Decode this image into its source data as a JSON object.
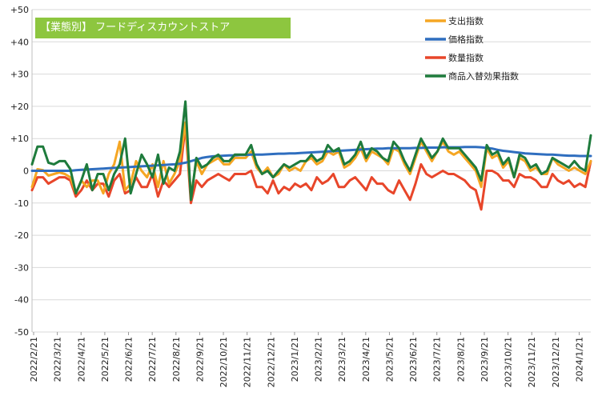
{
  "chart_data": {
    "type": "line",
    "title": "【業態別】 フードディスカウントストア",
    "ylim": [
      -50,
      50
    ],
    "y_ticks": [
      "+50",
      "+40",
      "+30",
      "+20",
      "+10",
      "0",
      "-10",
      "-20",
      "-30",
      "-40",
      "-50"
    ],
    "x_ticks": [
      "2022/2/21",
      "2022/3/21",
      "2022/4/21",
      "2022/5/21",
      "2022/6/21",
      "2022/7/21",
      "2022/8/21",
      "2022/9/21",
      "2022/10/21",
      "2022/11/21",
      "2022/12/21",
      "2023/1/21",
      "2023/2/21",
      "2023/3/21",
      "2023/4/21",
      "2023/5/21",
      "2023/6/21",
      "2023/7/21",
      "2023/8/21",
      "2023/9/21",
      "2023/10/21",
      "2023/11/21",
      "2023/12/21",
      "2024/1/21"
    ],
    "weeks_per_tick": 4.33,
    "grid": true,
    "legend_position": "top-right",
    "series": [
      {
        "name": "支出指数",
        "color": "#f5a623",
        "values": [
          -5,
          0.5,
          0.2,
          -1.5,
          -1,
          -0.5,
          -1,
          -2,
          -7,
          -3,
          -5,
          -3,
          -3,
          -7,
          -1,
          2,
          9,
          -6,
          -4,
          3,
          0,
          -2,
          2,
          -5,
          3,
          -4,
          -1,
          3,
          15,
          -8,
          3,
          -1,
          2,
          3,
          4,
          2,
          2,
          4,
          4,
          4,
          6,
          1,
          -1,
          1,
          -2,
          -1,
          2,
          0,
          1,
          0,
          3,
          4,
          2,
          3,
          6,
          5,
          6,
          1,
          2,
          4,
          7,
          3,
          6,
          5,
          4,
          2,
          7,
          6,
          2,
          -1,
          4,
          9,
          6,
          3,
          6,
          9,
          6,
          5,
          6,
          4,
          2,
          0,
          -5,
          7,
          4,
          5,
          1,
          3,
          -2,
          4,
          3,
          0,
          1,
          -1,
          -1,
          4,
          2,
          1,
          0,
          1,
          0,
          -1,
          3
        ]
      },
      {
        "name": "価格指数",
        "color": "#2f6ebf",
        "values": [
          0,
          0,
          0,
          0,
          0,
          0,
          0,
          0,
          0.2,
          0.3,
          0.4,
          0.5,
          0.6,
          0.7,
          0.8,
          0.9,
          1,
          1.1,
          1.2,
          1.3,
          1.4,
          1.5,
          1.6,
          1.7,
          1.8,
          1.9,
          2.0,
          2.2,
          2.5,
          3,
          3.5,
          4,
          4.3,
          4.5,
          4.6,
          4.7,
          4.8,
          4.8,
          4.9,
          4.9,
          5,
          5,
          5,
          5.1,
          5.2,
          5.3,
          5.3,
          5.4,
          5.4,
          5.5,
          5.6,
          5.7,
          5.8,
          5.9,
          6,
          6.1,
          6.2,
          6.3,
          6.4,
          6.5,
          6.6,
          6.7,
          6.8,
          6.9,
          6.9,
          7,
          7,
          7,
          7,
          7,
          7.1,
          7.1,
          7.2,
          7.2,
          7.2,
          7.3,
          7.3,
          7.3,
          7.3,
          7.4,
          7.4,
          7.4,
          7.3,
          7.1,
          6.9,
          6.5,
          6.2,
          6,
          5.8,
          5.6,
          5.4,
          5.3,
          5.2,
          5.1,
          5,
          5,
          4.9,
          4.8,
          4.7,
          4.7,
          4.6,
          4.6,
          4.6
        ]
      },
      {
        "name": "数量指数",
        "color": "#e8462a",
        "values": [
          -6,
          -2,
          -2,
          -4,
          -3,
          -2,
          -2,
          -3,
          -8,
          -6,
          -3,
          -6,
          -4,
          -4,
          -8,
          -3,
          -1,
          -7,
          -6,
          -2,
          -5,
          -5,
          -1,
          -8,
          -3,
          -5,
          -3,
          -1,
          14,
          -10,
          -3,
          -5,
          -3,
          -2,
          -1,
          -2,
          -3,
          -1,
          -1,
          -1,
          0,
          -5,
          -5,
          -7,
          -3,
          -7,
          -5,
          -6,
          -4,
          -5,
          -4,
          -6,
          -2,
          -4,
          -3,
          -1,
          -5,
          -5,
          -3,
          -2,
          -4,
          -6,
          -2,
          -4,
          -4,
          -6,
          -7,
          -3,
          -6,
          -9,
          -4,
          2,
          -1,
          -2,
          -1,
          0,
          -1,
          -1,
          -2,
          -3,
          -5,
          -6,
          -12,
          0,
          0,
          -1,
          -3,
          -3,
          -5,
          -1,
          -2,
          -2,
          -3,
          -5,
          -5,
          -1,
          -3,
          -4,
          -3,
          -5,
          -4,
          -5,
          3
        ]
      },
      {
        "name": "商品入替効果指数",
        "color": "#1e7b3c",
        "values": [
          2,
          7.5,
          7.5,
          2.5,
          2,
          3,
          3,
          0.5,
          -7,
          -3,
          2,
          -6,
          -1,
          -1,
          -6,
          -1,
          2,
          10,
          -7,
          -1,
          5,
          2,
          -2,
          5,
          -4,
          1,
          0,
          6,
          21.5,
          -9,
          4,
          1,
          2,
          4,
          5,
          3,
          3,
          5,
          5,
          5,
          8,
          2,
          -1,
          0,
          -2,
          0,
          2,
          1,
          2,
          3,
          3,
          5,
          3,
          4,
          8,
          6,
          7,
          2,
          3,
          5,
          9,
          4,
          7,
          6,
          4,
          3,
          9,
          7,
          3,
          0,
          5,
          10,
          7,
          4,
          6,
          10,
          7,
          7,
          7,
          5,
          3,
          1,
          -3,
          8,
          5,
          6,
          2,
          4,
          -2,
          5,
          4,
          1,
          2,
          -1,
          0,
          4,
          3,
          2,
          1,
          3,
          1,
          0,
          11
        ]
      }
    ]
  }
}
